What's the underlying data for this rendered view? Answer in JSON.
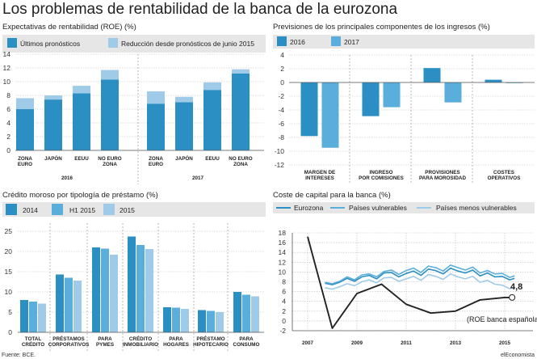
{
  "title": "Los problemas de rentabilidad de la banca de la eurozona",
  "footer": {
    "source": "Fuente: BCE.",
    "credit": "elEconomista"
  },
  "colors": {
    "dark": "#2b8fc3",
    "mid": "#5aaedb",
    "light": "#9fcbe8",
    "line_dark": "#222222"
  },
  "chart_data": [
    {
      "type": "bar",
      "stacked": true,
      "title": "Expectativas de rentabilidad (ROE) (%)",
      "groups": [
        "2016",
        "2017"
      ],
      "categories": [
        [
          "ZONA",
          "EURO"
        ],
        [
          "JAPÓN"
        ],
        [
          "EEUU"
        ],
        [
          "NO EURO",
          "ZONA"
        ],
        [
          "ZONA",
          "EURO"
        ],
        [
          "JAPÓN"
        ],
        [
          "EEUU"
        ],
        [
          "NO EURO",
          "ZONA"
        ]
      ],
      "series": [
        {
          "name": "Últimos pronósticos",
          "values": [
            6.0,
            7.4,
            8.3,
            10.3,
            6.8,
            7.0,
            8.8,
            11.2
          ]
        },
        {
          "name": "Reducción desde pronósticos de junio 2015",
          "values": [
            1.6,
            0.6,
            1.1,
            1.4,
            1.8,
            0.8,
            1.1,
            0.6
          ]
        }
      ],
      "yticks": [
        0,
        2,
        4,
        6,
        8,
        10,
        12,
        14
      ],
      "ylim": [
        0,
        14
      ],
      "grid": true
    },
    {
      "type": "bar",
      "title": "Previsiones de los principales componentes de los ingresos (%)",
      "categories": [
        [
          "MARGEN DE",
          "INTERESES"
        ],
        [
          "INGRESO",
          "POR COMISIONES"
        ],
        [
          "PROVISIONES",
          "PARA MOROSIDAD"
        ],
        [
          "COSTES",
          "OPERATIVOS"
        ]
      ],
      "series": [
        {
          "name": "2016",
          "values": [
            -7.8,
            -4.9,
            2.1,
            0.4
          ]
        },
        {
          "name": "2017",
          "values": [
            -9.5,
            -3.6,
            -2.9,
            -0.1
          ]
        }
      ],
      "yticks": [
        4,
        2,
        0,
        -2,
        -4,
        -6,
        -8,
        -10,
        -12
      ],
      "ylim": [
        -12,
        4
      ],
      "grid": true
    },
    {
      "type": "bar",
      "title": "Crédito moroso por tipología de préstamo (%)",
      "categories": [
        [
          "TOTAL",
          "CRÉDITO"
        ],
        [
          "PRÉSTAMOS",
          "CORPORATIVOS"
        ],
        [
          "PARA",
          "PYMES"
        ],
        [
          "CRÉDITO",
          "INMOBILIARIO"
        ],
        [
          "PARA",
          "HOGARES"
        ],
        [
          "PRÉSTAMO",
          "HIPOTECARIO"
        ],
        [
          "PARA",
          "CONSUMO"
        ]
      ],
      "series": [
        {
          "name": "2014",
          "values": [
            8.0,
            14.3,
            21.0,
            23.7,
            6.2,
            5.5,
            10.0
          ]
        },
        {
          "name": "H1 2015",
          "values": [
            7.6,
            13.5,
            20.7,
            21.6,
            6.1,
            5.3,
            9.3
          ]
        },
        {
          "name": "2015",
          "values": [
            7.1,
            12.8,
            19.2,
            20.6,
            5.8,
            5.0,
            8.9
          ]
        }
      ],
      "yticks": [
        0,
        5,
        10,
        15,
        20,
        25
      ],
      "ylim": [
        0,
        27
      ],
      "grid": true
    },
    {
      "type": "line",
      "title": "Coste de capital para la banca (%)",
      "x_ticks": [
        "2007",
        "2009",
        "2011",
        "2013",
        "2015"
      ],
      "xlim": [
        2007,
        2015.5
      ],
      "yticks": [
        -2,
        0,
        2,
        4,
        6,
        8,
        10,
        12,
        14,
        16,
        18
      ],
      "ylim": [
        -2,
        18
      ],
      "grid": true,
      "series": [
        {
          "name": "Eurozona",
          "x": [
            2007.7,
            2008.0,
            2008.3,
            2008.6,
            2008.9,
            2009.2,
            2009.5,
            2009.8,
            2010.1,
            2010.4,
            2010.7,
            2011.0,
            2011.3,
            2011.6,
            2011.9,
            2012.2,
            2012.5,
            2012.8,
            2013.1,
            2013.4,
            2013.7,
            2014.0,
            2014.3,
            2014.6,
            2014.9,
            2015.2,
            2015.4
          ],
          "y": [
            7.7,
            7.4,
            7.9,
            8.7,
            8.1,
            9.0,
            9.3,
            8.6,
            9.8,
            9.9,
            9.0,
            9.7,
            10.2,
            9.3,
            10.6,
            10.3,
            9.6,
            10.8,
            10.2,
            9.8,
            10.4,
            9.2,
            9.8,
            9.0,
            9.1,
            8.4,
            8.7
          ]
        },
        {
          "name": "Países vulnerables",
          "x": [
            2007.7,
            2008.0,
            2008.3,
            2008.6,
            2008.9,
            2009.2,
            2009.5,
            2009.8,
            2010.1,
            2010.4,
            2010.7,
            2011.0,
            2011.3,
            2011.6,
            2011.9,
            2012.2,
            2012.5,
            2012.8,
            2013.1,
            2013.4,
            2013.7,
            2014.0,
            2014.3,
            2014.6,
            2014.9,
            2015.2,
            2015.4
          ],
          "y": [
            7.9,
            7.6,
            8.1,
            9.0,
            8.4,
            9.4,
            9.6,
            9.0,
            10.1,
            10.4,
            9.5,
            10.3,
            10.8,
            9.9,
            11.2,
            10.9,
            10.2,
            11.4,
            10.9,
            10.4,
            11.0,
            9.8,
            10.3,
            9.6,
            9.7,
            8.9,
            9.2
          ]
        },
        {
          "name": "Países menos vulnerables",
          "x": [
            2007.7,
            2008.0,
            2008.3,
            2008.6,
            2008.9,
            2009.2,
            2009.5,
            2009.8,
            2010.1,
            2010.4,
            2010.7,
            2011.0,
            2011.3,
            2011.6,
            2011.9,
            2012.2,
            2012.5,
            2012.8,
            2013.1,
            2013.4,
            2013.7,
            2014.0,
            2014.3,
            2014.6,
            2014.9,
            2015.2,
            2015.4
          ],
          "y": [
            6.8,
            6.5,
            7.0,
            7.6,
            7.2,
            8.0,
            8.4,
            7.8,
            8.8,
            8.9,
            8.1,
            8.6,
            9.1,
            8.3,
            9.5,
            9.1,
            8.5,
            9.6,
            9.0,
            8.6,
            9.1,
            7.9,
            8.3,
            7.5,
            7.3,
            6.6,
            6.9
          ]
        },
        {
          "name": "ROE banca española",
          "x": [
            2007.0,
            2008.0,
            2009.0,
            2010.0,
            2011.0,
            2012.0,
            2013.0,
            2014.0,
            2015.0,
            2015.3
          ],
          "y": [
            17.2,
            -1.5,
            5.6,
            7.5,
            3.4,
            1.6,
            2.0,
            4.3,
            4.8,
            4.8
          ]
        }
      ],
      "annotations": {
        "last_value": "4,8",
        "note": "(ROE banca española)"
      }
    }
  ]
}
